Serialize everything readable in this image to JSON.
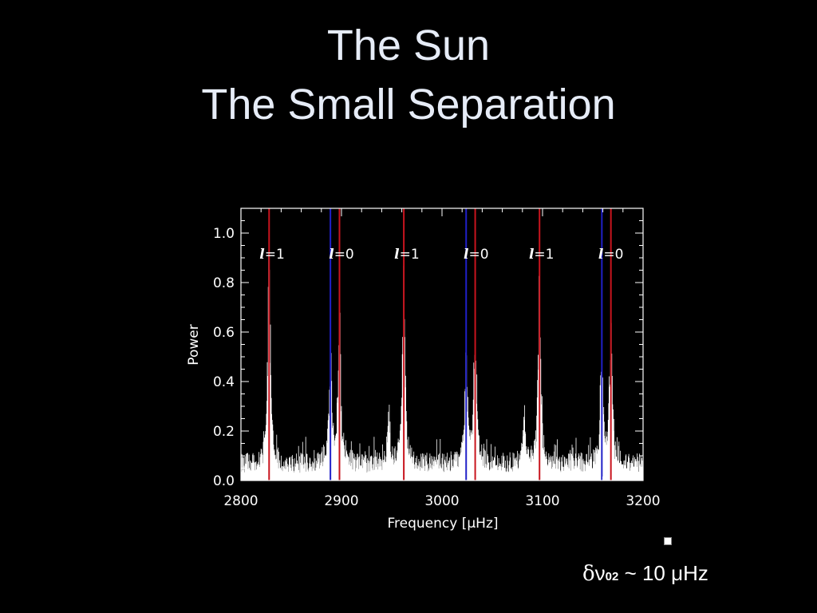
{
  "slide": {
    "title_line1": "The Sun",
    "title_line2": "The Small Separation",
    "footnote": {
      "delta": "δ",
      "nu": "ν",
      "sub": "02",
      "rest": " ~ 10 μHz"
    }
  },
  "colors": {
    "background": "#000000",
    "spectrum": "#ffffff",
    "l1_line": "#c8141e",
    "l0_red_line": "#c8141e",
    "l0_blue_line": "#2020c8",
    "title": "#e6ecf7"
  },
  "chart_data": {
    "type": "line",
    "title": "",
    "xlabel": "Frequency [μHz]",
    "ylabel": "Power",
    "xlim": [
      2800,
      3200
    ],
    "ylim": [
      0,
      1.1
    ],
    "xticks": [
      "2800",
      "2900",
      "3000",
      "3100",
      "3200"
    ],
    "yticks": [
      "0.0",
      "0.2",
      "0.4",
      "0.6",
      "0.8",
      "1.0"
    ],
    "xtick_values": [
      2800,
      2900,
      3000,
      3100,
      3200
    ],
    "ytick_values": [
      0.0,
      0.2,
      0.4,
      0.6,
      0.8,
      1.0
    ],
    "grid": false,
    "mode_labels": [
      {
        "ell": "l",
        "text": "=1",
        "x": 2828
      },
      {
        "ell": "l",
        "text": "=0",
        "x": 2897
      },
      {
        "ell": "l",
        "text": "=1",
        "x": 2962
      },
      {
        "ell": "l",
        "text": "=0",
        "x": 3031
      },
      {
        "ell": "l",
        "text": "=1",
        "x": 3096
      },
      {
        "ell": "l",
        "text": "=0",
        "x": 3165
      }
    ],
    "vertical_lines": [
      {
        "x": 2828,
        "color": "red"
      },
      {
        "x": 2889,
        "color": "blue"
      },
      {
        "x": 2898,
        "color": "red"
      },
      {
        "x": 2962,
        "color": "red"
      },
      {
        "x": 3024,
        "color": "blue"
      },
      {
        "x": 3033,
        "color": "red"
      },
      {
        "x": 3097,
        "color": "red"
      },
      {
        "x": 3159,
        "color": "blue"
      },
      {
        "x": 3168,
        "color": "red"
      }
    ],
    "peaks": [
      {
        "x": 2828,
        "height": 0.9
      },
      {
        "x": 2889,
        "height": 0.5
      },
      {
        "x": 2898,
        "height": 0.65
      },
      {
        "x": 2947,
        "height": 0.2
      },
      {
        "x": 2962,
        "height": 0.85
      },
      {
        "x": 3024,
        "height": 0.5
      },
      {
        "x": 3033,
        "height": 0.65
      },
      {
        "x": 3082,
        "height": 0.2
      },
      {
        "x": 3097,
        "height": 0.85
      },
      {
        "x": 3159,
        "height": 0.5
      },
      {
        "x": 3168,
        "height": 0.6
      }
    ],
    "noise_level": 0.09
  }
}
